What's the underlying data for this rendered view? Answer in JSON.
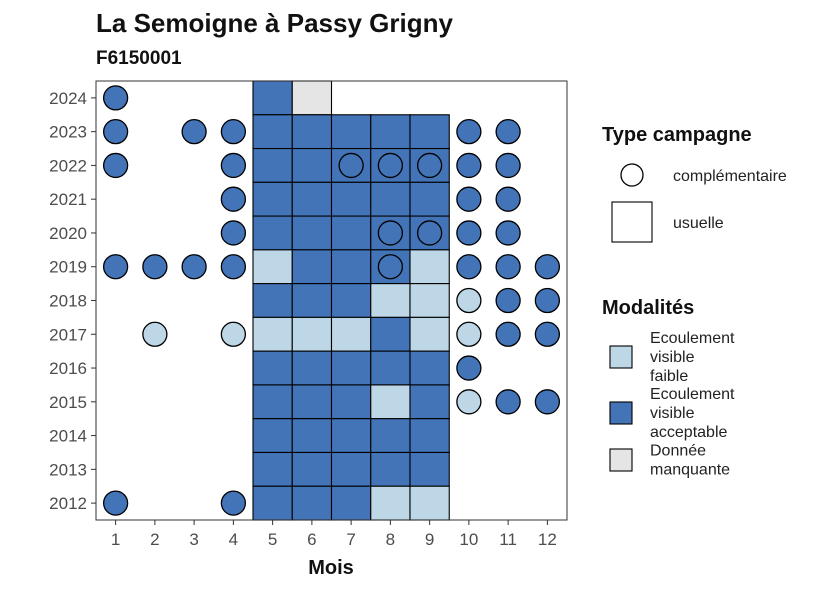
{
  "chart_data": {
    "type": "heatmap",
    "title": "La Semoigne à Passy Grigny",
    "subtitle": "F6150001",
    "xlabel": "Mois",
    "ylabel": "",
    "x_ticks": [
      1,
      2,
      3,
      4,
      5,
      6,
      7,
      8,
      9,
      10,
      11,
      12
    ],
    "y_ticks": [
      2012,
      2013,
      2014,
      2015,
      2016,
      2017,
      2018,
      2019,
      2020,
      2021,
      2022,
      2023,
      2024
    ],
    "xlim": [
      0.5,
      12.5
    ],
    "ylim": [
      2011.5,
      2024.5
    ],
    "grid": false,
    "colors": {
      "faible": "#bdd7e7",
      "acceptable": "#4374b7",
      "manquante": "#e5e5e5"
    },
    "legend_type": {
      "title": "Type campagne",
      "items": [
        {
          "label": "complémentaire",
          "shape": "circle"
        },
        {
          "label": "usuelle",
          "shape": "square"
        }
      ]
    },
    "legend_modalites": {
      "title": "Modalités",
      "items": [
        {
          "key": "faible",
          "lines": [
            "Ecoulement",
            "visible",
            "faible"
          ]
        },
        {
          "key": "acceptable",
          "lines": [
            "Ecoulement",
            "visible",
            "acceptable"
          ]
        },
        {
          "key": "manquante",
          "lines": [
            "Donnée",
            "manquante"
          ]
        }
      ]
    },
    "usuelle": [
      {
        "year": 2024,
        "months": {
          "5": "acceptable",
          "6": "manquante"
        }
      },
      {
        "year": 2023,
        "months": {
          "5": "acceptable",
          "6": "acceptable",
          "7": "acceptable",
          "8": "acceptable",
          "9": "acceptable"
        }
      },
      {
        "year": 2022,
        "months": {
          "5": "acceptable",
          "6": "acceptable",
          "7": "acceptable",
          "8": "acceptable",
          "9": "acceptable"
        }
      },
      {
        "year": 2021,
        "months": {
          "5": "acceptable",
          "6": "acceptable",
          "7": "acceptable",
          "8": "acceptable",
          "9": "acceptable"
        }
      },
      {
        "year": 2020,
        "months": {
          "5": "acceptable",
          "6": "acceptable",
          "7": "acceptable",
          "8": "acceptable",
          "9": "acceptable"
        }
      },
      {
        "year": 2019,
        "months": {
          "5": "faible",
          "6": "acceptable",
          "7": "acceptable",
          "8": "acceptable",
          "9": "faible"
        }
      },
      {
        "year": 2018,
        "months": {
          "5": "acceptable",
          "6": "acceptable",
          "7": "acceptable",
          "8": "faible",
          "9": "faible"
        }
      },
      {
        "year": 2017,
        "months": {
          "5": "faible",
          "6": "faible",
          "7": "faible",
          "8": "acceptable",
          "9": "faible"
        }
      },
      {
        "year": 2016,
        "months": {
          "5": "acceptable",
          "6": "acceptable",
          "7": "acceptable",
          "8": "acceptable",
          "9": "acceptable"
        }
      },
      {
        "year": 2015,
        "months": {
          "5": "acceptable",
          "6": "acceptable",
          "7": "acceptable",
          "8": "faible",
          "9": "acceptable"
        }
      },
      {
        "year": 2014,
        "months": {
          "5": "acceptable",
          "6": "acceptable",
          "7": "acceptable",
          "8": "acceptable",
          "9": "acceptable"
        }
      },
      {
        "year": 2013,
        "months": {
          "5": "acceptable",
          "6": "acceptable",
          "7": "acceptable",
          "8": "acceptable",
          "9": "acceptable"
        }
      },
      {
        "year": 2012,
        "months": {
          "5": "acceptable",
          "6": "acceptable",
          "7": "acceptable",
          "8": "faible",
          "9": "faible"
        }
      }
    ],
    "complementaire": [
      {
        "year": 2024,
        "months": {
          "1": "acceptable"
        }
      },
      {
        "year": 2023,
        "months": {
          "1": "acceptable",
          "3": "acceptable",
          "4": "acceptable",
          "10": "acceptable",
          "11": "acceptable"
        }
      },
      {
        "year": 2022,
        "months": {
          "1": "acceptable",
          "4": "acceptable",
          "7": "acceptable",
          "8": "acceptable",
          "9": "acceptable",
          "10": "acceptable",
          "11": "acceptable"
        }
      },
      {
        "year": 2021,
        "months": {
          "4": "acceptable",
          "10": "acceptable",
          "11": "acceptable"
        }
      },
      {
        "year": 2020,
        "months": {
          "4": "acceptable",
          "8": "acceptable",
          "9": "acceptable",
          "10": "acceptable",
          "11": "acceptable"
        }
      },
      {
        "year": 2019,
        "months": {
          "1": "acceptable",
          "2": "acceptable",
          "3": "acceptable",
          "4": "acceptable",
          "8": "acceptable",
          "10": "acceptable",
          "11": "acceptable",
          "12": "acceptable"
        }
      },
      {
        "year": 2018,
        "months": {
          "10": "faible",
          "11": "acceptable",
          "12": "acceptable"
        }
      },
      {
        "year": 2017,
        "months": {
          "2": "faible",
          "4": "faible",
          "10": "faible",
          "11": "acceptable",
          "12": "acceptable"
        }
      },
      {
        "year": 2016,
        "months": {
          "10": "acceptable"
        }
      },
      {
        "year": 2015,
        "months": {
          "10": "faible",
          "11": "acceptable",
          "12": "acceptable"
        }
      },
      {
        "year": 2012,
        "months": {
          "1": "acceptable",
          "4": "acceptable"
        }
      }
    ]
  }
}
